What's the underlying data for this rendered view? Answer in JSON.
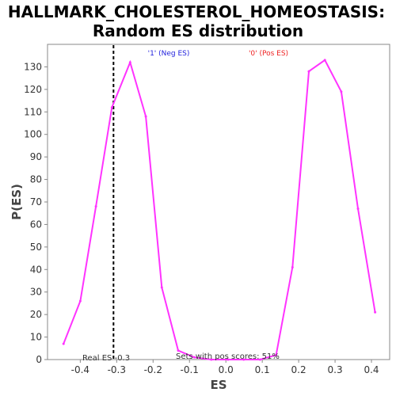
{
  "chart_data": {
    "type": "line",
    "title_line1": "HALLMARK_CHOLESTEROL_HOMEOSTASIS:",
    "title_line2": "Random ES distribution",
    "xlabel": "ES",
    "ylabel": "P(ES)",
    "xlim": [
      -0.49,
      0.45
    ],
    "ylim": [
      0,
      140
    ],
    "x_ticks": [
      -0.4,
      -0.3,
      -0.2,
      -0.1,
      0.0,
      0.1,
      0.2,
      0.3,
      0.4
    ],
    "x_tick_labels": [
      "-0.4",
      "-0.3",
      "-0.2",
      "-0.1",
      "0.0",
      "0.1",
      "0.2",
      "0.3",
      "0.4"
    ],
    "y_ticks": [
      0,
      10,
      20,
      30,
      40,
      50,
      60,
      70,
      80,
      90,
      100,
      110,
      120,
      130
    ],
    "y_tick_labels": [
      "0",
      "10",
      "20",
      "30",
      "40",
      "50",
      "60",
      "70",
      "80",
      "90",
      "100",
      "110",
      "120",
      "130"
    ],
    "series": [
      {
        "color": "#ff33ff",
        "x": [
          -0.446,
          -0.4,
          -0.357,
          -0.313,
          -0.263,
          -0.22,
          -0.176,
          -0.131,
          -0.087,
          -0.04,
          0.006,
          0.049,
          0.094,
          0.138,
          0.183,
          0.228,
          0.272,
          0.317,
          0.363,
          0.41
        ],
        "y": [
          7,
          26,
          68,
          112,
          132,
          108,
          32,
          4,
          1,
          0,
          0,
          0,
          0,
          2,
          41,
          128,
          133,
          119,
          67,
          21
        ]
      }
    ],
    "real_es": -0.3,
    "real_es_label": "Real ES -0.3",
    "neg_label": "'1' (Neg ES)",
    "pos_label": "'0' (Pos ES)",
    "neg_color": "#2222dd",
    "pos_color": "#ee2222",
    "pos_scores_note": "Sets with pos scores: 51%",
    "grid": false,
    "background": "#ffffff"
  }
}
